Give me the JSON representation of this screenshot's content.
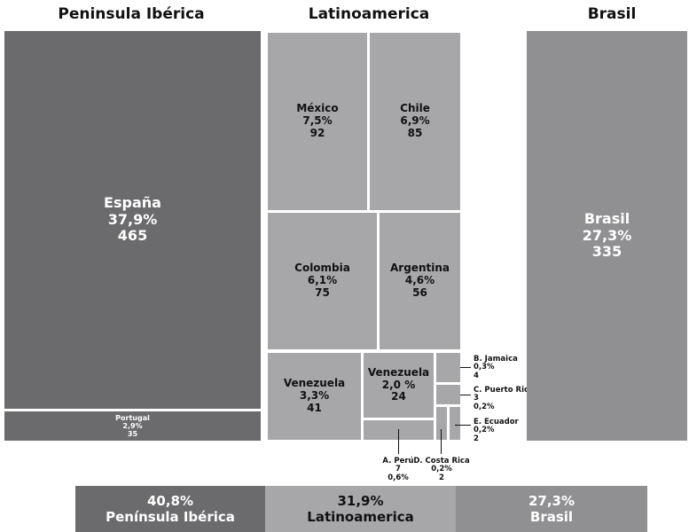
{
  "chart_data": {
    "type": "treemap",
    "groups": [
      {
        "name": "Peninsula Ibérica",
        "items": [
          {
            "name": "España",
            "percent": "37,9%",
            "value": 465
          },
          {
            "name": "Portugal",
            "percent": "2,9%",
            "value": 35
          }
        ]
      },
      {
        "name": "Latinoamerica",
        "items": [
          {
            "name": "México",
            "percent": "7,5%",
            "value": 92
          },
          {
            "name": "Chile",
            "percent": "6,9%",
            "value": 85
          },
          {
            "name": "Colombia",
            "percent": "6,1%",
            "value": 75
          },
          {
            "name": "Argentina",
            "percent": "4,6%",
            "value": 56
          },
          {
            "name": "Venezuela",
            "percent": "3,3%",
            "value": 41
          },
          {
            "name": "Venezuela",
            "percent": "2,0 %",
            "value": 24
          },
          {
            "name": "B. Jamaica",
            "percent": "0,3%",
            "value": 4
          },
          {
            "name": "C. Puerto Rico",
            "percent": "0,2%",
            "value": 3
          },
          {
            "name": "E. Ecuador",
            "percent": "0,2%",
            "value": 2
          },
          {
            "name": "A. Perú",
            "percent": "0,6%",
            "value": 7
          },
          {
            "name": "D. Costa Rica",
            "percent": "0,2%",
            "value": 2
          }
        ]
      },
      {
        "name": "Brasil",
        "items": [
          {
            "name": "Brasil",
            "percent": "27,3%",
            "value": 335
          }
        ]
      }
    ],
    "summary": [
      {
        "name": "Península Ibérica",
        "percent": "40,8%"
      },
      {
        "name": "Latinoamerica",
        "percent": "31,9%"
      },
      {
        "name": "Brasil",
        "percent": "27,3%"
      }
    ],
    "colors": {
      "iberica": "#6b6b6e",
      "latam": "#a7a7aa",
      "brasil": "#909093"
    }
  }
}
